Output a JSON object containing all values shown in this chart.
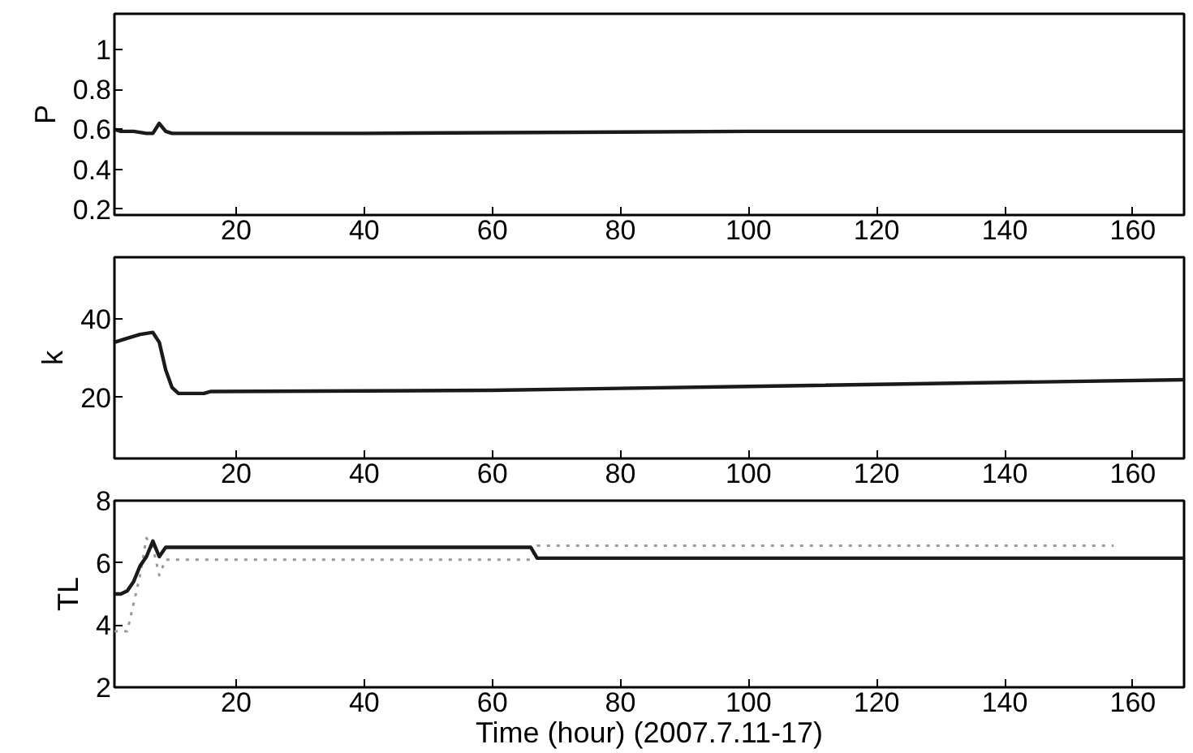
{
  "chart_data": [
    {
      "type": "line",
      "ylabel": "P",
      "xlim": [
        1,
        168
      ],
      "xticks": [
        20,
        40,
        60,
        80,
        100,
        120,
        140,
        160
      ],
      "ylim": [
        0.17,
        1.18
      ],
      "yticks": [
        0.2,
        0.4,
        0.6,
        0.8,
        1
      ],
      "grid": false,
      "series": [
        {
          "color": "#1a1a1a",
          "x": [
            1,
            2,
            4,
            6,
            7,
            8,
            9,
            10,
            20,
            40,
            100,
            168
          ],
          "values": [
            0.6,
            0.59,
            0.59,
            0.58,
            0.58,
            0.63,
            0.59,
            0.58,
            0.58,
            0.58,
            0.59,
            0.59
          ]
        }
      ]
    },
    {
      "type": "line",
      "ylabel": "k",
      "xlim": [
        1,
        168
      ],
      "xticks": [
        20,
        40,
        60,
        80,
        100,
        120,
        140,
        160
      ],
      "ylim": [
        4.5,
        55.6
      ],
      "yticks": [
        20,
        40
      ],
      "grid": false,
      "series": [
        {
          "color": "#1a1a1a",
          "x": [
            1,
            3,
            5,
            7,
            8,
            9,
            10,
            11,
            15,
            16,
            60,
            100,
            168
          ],
          "values": [
            34,
            35,
            36,
            36.5,
            34,
            27,
            22.5,
            21,
            21,
            21.5,
            21.8,
            22.8,
            24.5
          ]
        }
      ]
    },
    {
      "type": "line",
      "ylabel": "TL",
      "xlabel": "Time (hour) (2007.7.11-17)",
      "xlim": [
        1,
        168
      ],
      "xticks": [
        20,
        40,
        60,
        80,
        100,
        120,
        140,
        160
      ],
      "ylim": [
        2,
        8
      ],
      "yticks": [
        2,
        4,
        6,
        8
      ],
      "grid": false,
      "series": [
        {
          "color": "#999999",
          "line_style": "dotted",
          "x": [
            1,
            3,
            5,
            6,
            7,
            8,
            9,
            66,
            67,
            157
          ],
          "values": [
            3.8,
            3.8,
            5.6,
            6.8,
            6.5,
            5.6,
            6.1,
            6.1,
            6.55,
            6.55
          ]
        },
        {
          "color": "#1a1a1a",
          "x": [
            1,
            2,
            3,
            4,
            5,
            6,
            7,
            8,
            9,
            66,
            67,
            168
          ],
          "values": [
            5,
            5,
            5.1,
            5.4,
            5.9,
            6.2,
            6.7,
            6.2,
            6.5,
            6.5,
            6.15,
            6.15
          ]
        }
      ]
    }
  ]
}
